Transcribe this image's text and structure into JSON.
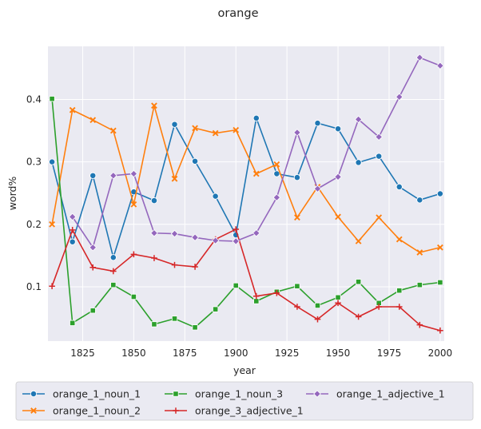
{
  "chart_data": {
    "type": "line",
    "title": "orange",
    "xlabel": "year",
    "ylabel": "word%",
    "xlim": [
      1808,
      2002
    ],
    "ylim": [
      0.013,
      0.485
    ],
    "xticks": [
      1825,
      1850,
      1875,
      1900,
      1925,
      1950,
      1975,
      2000
    ],
    "yticks": [
      0.1,
      0.2,
      0.3,
      0.4
    ],
    "ytick_labels": [
      "0.1",
      "0.2",
      "0.3",
      "0.4"
    ],
    "grid": true,
    "legend_position": "bottom",
    "x": [
      1810,
      1820,
      1830,
      1840,
      1850,
      1860,
      1870,
      1880,
      1890,
      1900,
      1910,
      1920,
      1930,
      1940,
      1950,
      1960,
      1970,
      1980,
      1990,
      2000
    ],
    "series": [
      {
        "name": "orange_1_noun_1",
        "color": "#1f77b4",
        "marker": "circle",
        "values": [
          0.3,
          0.172,
          0.278,
          0.147,
          0.252,
          0.238,
          0.36,
          0.301,
          0.245,
          0.183,
          0.37,
          0.281,
          0.275,
          0.362,
          0.353,
          0.299,
          0.309,
          0.26,
          0.239,
          0.249
        ]
      },
      {
        "name": "orange_1_noun_2",
        "color": "#ff7f0e",
        "marker": "x",
        "values": [
          0.2,
          0.383,
          0.367,
          0.35,
          0.232,
          0.39,
          0.273,
          0.354,
          0.346,
          0.351,
          0.281,
          0.296,
          0.211,
          0.26,
          0.212,
          0.173,
          0.211,
          0.176,
          0.155,
          0.163
        ]
      },
      {
        "name": "orange_1_noun_3",
        "color": "#2ca02c",
        "marker": "square",
        "values": [
          0.401,
          0.042,
          0.062,
          0.103,
          0.084,
          0.04,
          0.049,
          0.035,
          0.064,
          0.102,
          0.077,
          0.092,
          0.101,
          0.07,
          0.083,
          0.108,
          0.074,
          0.094,
          0.103,
          0.107
        ]
      },
      {
        "name": "orange_3_adjective_1",
        "color": "#d62728",
        "marker": "plus",
        "values": [
          0.101,
          0.191,
          0.131,
          0.125,
          0.152,
          0.146,
          0.135,
          0.132,
          0.176,
          0.192,
          0.085,
          0.09,
          0.068,
          0.048,
          0.074,
          0.052,
          0.068,
          0.068,
          0.039,
          0.03
        ]
      },
      {
        "name": "orange_1_adjective_1",
        "color": "#9467bd",
        "marker": "diamond",
        "values": [
          null,
          0.212,
          0.163,
          0.278,
          0.281,
          0.186,
          0.185,
          0.179,
          0.174,
          0.173,
          0.186,
          0.243,
          0.347,
          0.257,
          0.276,
          0.368,
          0.34,
          0.404,
          0.467,
          0.454
        ]
      }
    ]
  }
}
